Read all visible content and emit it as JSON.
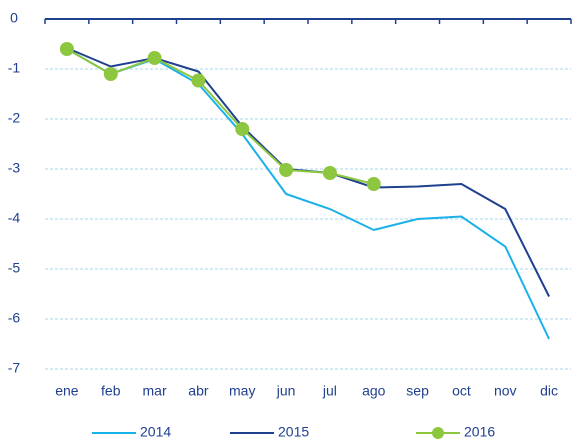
{
  "chart_data": {
    "type": "line",
    "categories": [
      "ene",
      "feb",
      "mar",
      "abr",
      "may",
      "jun",
      "jul",
      "ago",
      "sep",
      "oct",
      "nov",
      "dic"
    ],
    "series": [
      {
        "name": "2014",
        "color": "#1ab0e8",
        "marker": false,
        "values": [
          -0.6,
          -1.1,
          -0.8,
          -1.3,
          -2.3,
          -3.5,
          -3.8,
          -4.22,
          -4.0,
          -3.95,
          -4.55,
          -6.4
        ]
      },
      {
        "name": "2015",
        "color": "#1f3f8f",
        "marker": false,
        "values": [
          -0.58,
          -0.95,
          -0.78,
          -1.05,
          -2.15,
          -3.0,
          -3.08,
          -3.37,
          -3.35,
          -3.3,
          -3.8,
          -5.55
        ]
      },
      {
        "name": "2016",
        "color": "#8dc63f",
        "marker": true,
        "values": [
          -0.6,
          -1.1,
          -0.78,
          -1.23,
          -2.2,
          -3.02,
          -3.08,
          -3.3,
          null,
          null,
          null,
          null
        ]
      }
    ],
    "ylim": [
      -7,
      0
    ],
    "yticks": [
      0,
      -1,
      -2,
      -3,
      -4,
      -5,
      -6,
      -7
    ],
    "grid": true,
    "legend": "bottom"
  }
}
